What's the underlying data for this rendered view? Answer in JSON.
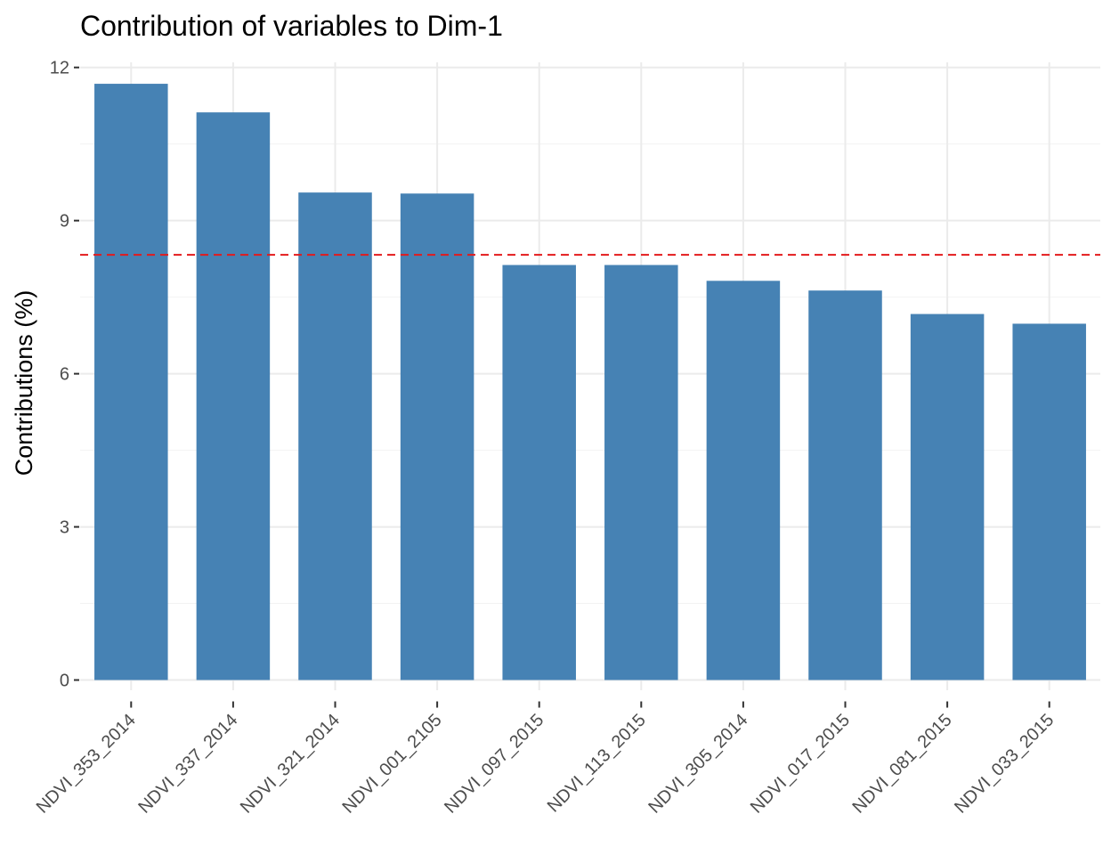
{
  "chart_data": {
    "type": "bar",
    "title": "Contribution of variables to Dim-1",
    "xlabel": "",
    "ylabel": "Contributions (%)",
    "categories": [
      "NDVI_353_2014",
      "NDVI_337_2014",
      "NDVI_321_2014",
      "NDVI_001_2105",
      "NDVI_097_2015",
      "NDVI_113_2015",
      "NDVI_305_2014",
      "NDVI_017_2015",
      "NDVI_081_2015",
      "NDVI_033_2015"
    ],
    "values": [
      11.68,
      11.12,
      9.55,
      9.53,
      8.13,
      8.13,
      7.82,
      7.63,
      7.17,
      6.98
    ],
    "reference_line": {
      "value": 8.33,
      "color": "#e31a1c",
      "style": "dashed"
    },
    "yticks": [
      "0",
      "3",
      "6",
      "9",
      "12"
    ],
    "ylim": [
      -0.2,
      12.1
    ],
    "grid": true,
    "legend": "none",
    "bar_color": "#4682b4"
  }
}
